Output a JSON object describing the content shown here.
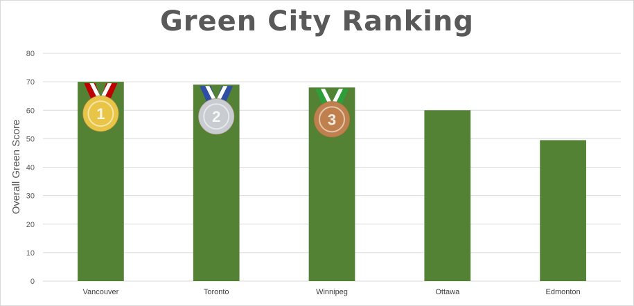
{
  "chart_data": {
    "type": "bar",
    "title": "Green City Ranking",
    "xlabel": "",
    "ylabel": "Overall Green Score",
    "categories": [
      "Vancouver",
      "Toronto",
      "Winnipeg",
      "Ottawa",
      "Edmonton"
    ],
    "values": [
      70,
      69,
      68,
      60,
      49.5
    ],
    "ylim": [
      0,
      80
    ],
    "yticks": [
      0,
      10,
      20,
      30,
      40,
      50,
      60,
      70,
      80
    ],
    "grid": true,
    "legend": "none",
    "bar_color": "#548235",
    "medals": [
      {
        "category": "Vancouver",
        "rank": "1",
        "medal": "gold-medal-icon",
        "ribbon": "#c00000",
        "face": "#e8c547"
      },
      {
        "category": "Toronto",
        "rank": "2",
        "medal": "silver-medal-icon",
        "ribbon": "#2f4ea5",
        "face": "#c9ccd1"
      },
      {
        "category": "Winnipeg",
        "rank": "3",
        "medal": "bronze-medal-icon",
        "ribbon": "#2e9e3a",
        "face": "#c0804d"
      }
    ]
  }
}
